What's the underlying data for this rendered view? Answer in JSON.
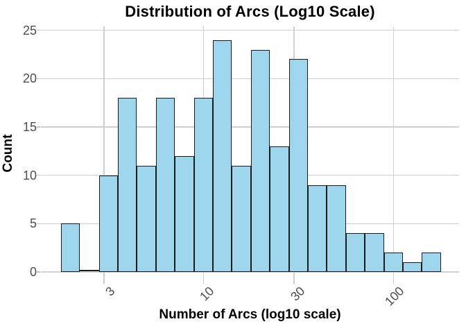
{
  "chart_data": {
    "type": "bar",
    "subtype": "histogram",
    "title": "Distribution of Arcs (Log10 Scale)",
    "xlabel": "Number of Arcs (log10 scale)",
    "ylabel": "Count",
    "x_scale": "log10",
    "x_tick_values": [
      3,
      10,
      30,
      100
    ],
    "y_tick_values": [
      0,
      5,
      10,
      15,
      20,
      25
    ],
    "ylim": [
      0,
      25.2
    ],
    "xlim_log10": [
      0.14,
      2.35
    ],
    "bin_width_log10": 0.1,
    "bin_edges_log10": [
      0.25,
      0.35,
      0.45,
      0.55,
      0.65,
      0.75,
      0.85,
      0.95,
      1.05,
      1.15,
      1.25,
      1.35,
      1.45,
      1.55,
      1.65,
      1.75,
      1.85,
      1.95,
      2.05,
      2.15,
      2.25
    ],
    "counts": [
      5,
      0,
      10,
      18,
      11,
      18,
      12,
      18,
      24,
      11,
      23,
      13,
      22,
      9,
      9,
      4,
      4,
      2,
      1,
      2
    ],
    "grid": true,
    "legend": "none",
    "colors": {
      "bar_fill": "#9ED6ED",
      "bar_border": "#1A1A1A",
      "grid": "#CFCFCF",
      "tick_mark": "#C6C6C6",
      "tick_label": "#4D4D4D",
      "title": "#000000",
      "background": "#FFFFFF"
    }
  }
}
